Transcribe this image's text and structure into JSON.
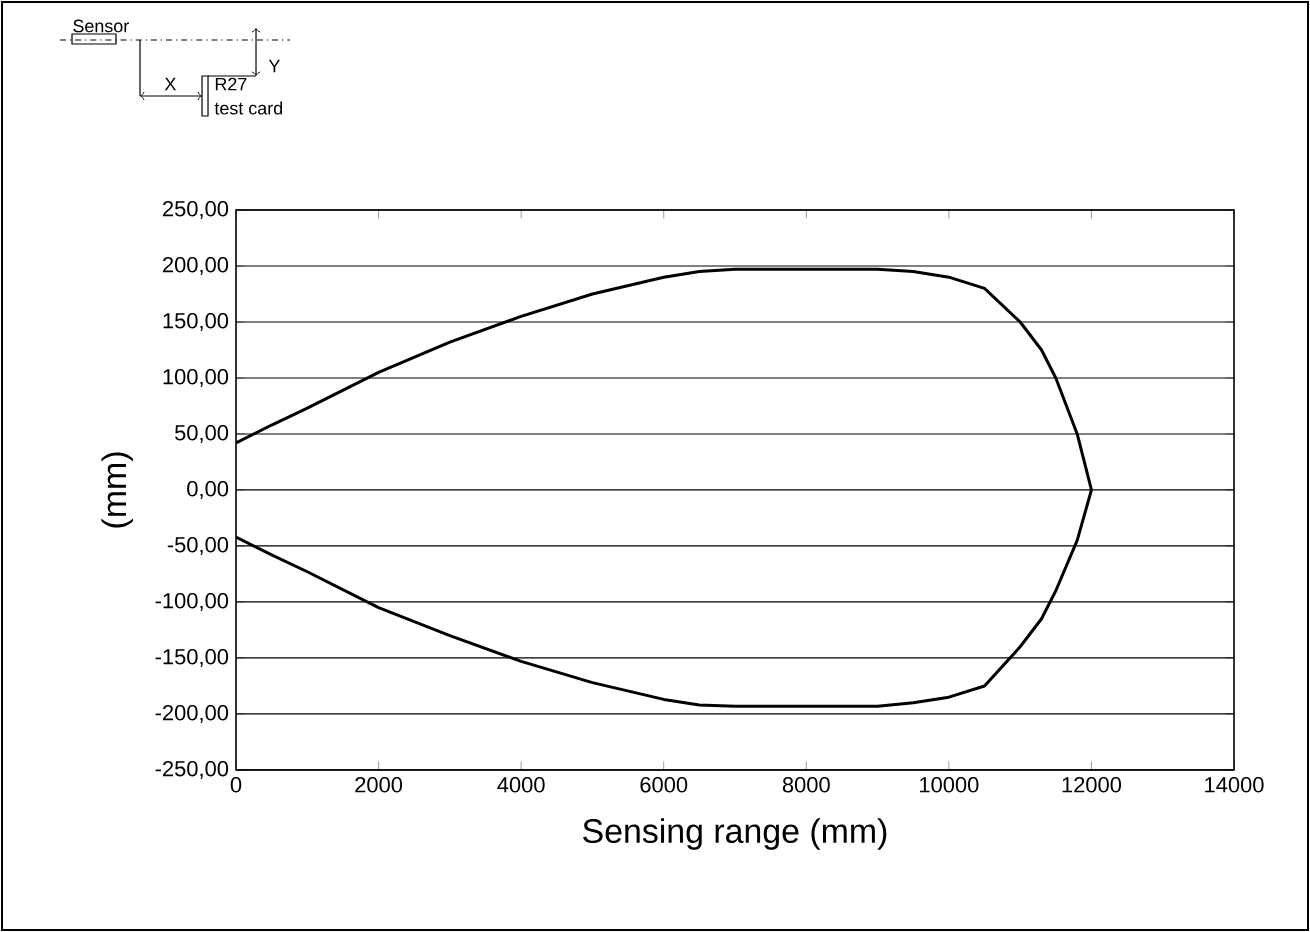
{
  "chart_data": {
    "type": "line",
    "xlabel": "Sensing range (mm)",
    "ylabel": "(mm)",
    "annotations": [
      "Sensor",
      "X",
      "Y",
      "R27",
      "test card"
    ],
    "series": [
      {
        "color": "#000000",
        "x": [
          0,
          500,
          1000,
          2000,
          3000,
          4000,
          5000,
          6000,
          6500,
          7000,
          8000,
          9000,
          9500,
          10000,
          10500,
          11000,
          11300,
          11500,
          11800,
          12000
        ],
        "values": [
          42,
          58,
          73,
          105,
          132,
          155,
          175,
          190,
          195,
          197,
          197,
          197,
          195,
          190,
          180,
          150,
          125,
          100,
          50,
          0
        ]
      },
      {
        "color": "#000000",
        "x": [
          0,
          500,
          1000,
          2000,
          3000,
          4000,
          5000,
          6000,
          6500,
          7000,
          8000,
          9000,
          9500,
          10000,
          10500,
          11000,
          11300,
          11500,
          11800,
          12000
        ],
        "values": [
          -42,
          -58,
          -73,
          -105,
          -130,
          -153,
          -172,
          -187,
          -192,
          -193,
          -193,
          -193,
          -190,
          -185,
          -175,
          -140,
          -115,
          -90,
          -45,
          0
        ]
      }
    ],
    "xlim": [
      0,
      14000
    ],
    "xticks": [
      0,
      2000,
      4000,
      6000,
      8000,
      10000,
      12000,
      14000
    ],
    "ylim": [
      -250,
      250
    ],
    "yticks": [
      {
        "value": -250,
        "label": "-250,00"
      },
      {
        "value": -200,
        "label": "-200,00"
      },
      {
        "value": -150,
        "label": "-150,00"
      },
      {
        "value": -100,
        "label": "-100,00"
      },
      {
        "value": -50,
        "label": "-50,00"
      },
      {
        "value": 0,
        "label": "0,00"
      },
      {
        "value": 50,
        "label": "50,00"
      },
      {
        "value": 100,
        "label": "100,00"
      },
      {
        "value": 150,
        "label": "150,00"
      },
      {
        "value": 200,
        "label": "200,00"
      },
      {
        "value": 250,
        "label": "250,00"
      }
    ],
    "grid": "y",
    "marker": "none",
    "line_style": "solid"
  }
}
